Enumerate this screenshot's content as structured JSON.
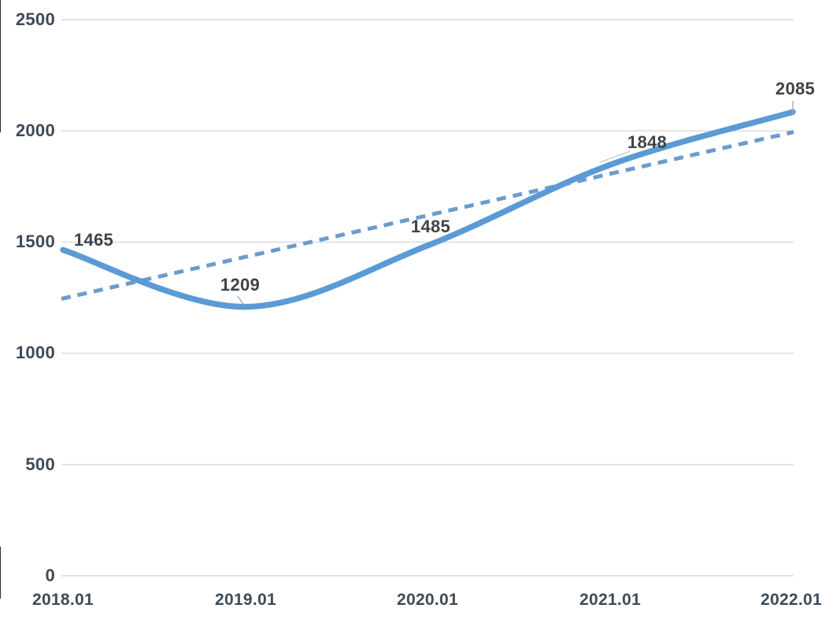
{
  "chart_data": {
    "type": "line",
    "title": "",
    "xlabel": "",
    "ylabel": "",
    "x": [
      "2018.01",
      "2019.01",
      "2020.01",
      "2021.01",
      "2022.01"
    ],
    "series": [
      {
        "name": "main-series",
        "line_style": "solid-smooth",
        "values": [
          1465,
          1209,
          1485,
          1848,
          2085
        ],
        "data_labels_shown": true
      }
    ],
    "trendline": {
      "name": "linear-trendline",
      "line_style": "dashed",
      "start_value": 1245,
      "end_value": 1995
    },
    "y_ticks": [
      0,
      500,
      1000,
      1500,
      2000,
      2500
    ],
    "ylim": [
      0,
      2500
    ],
    "grid": "horizontal-only",
    "legend": "none",
    "colors": {
      "line": "#5b9bd5",
      "trendline": "#6d9bcd",
      "gridline": "#d9d9d9",
      "axis_label": "#3e4a58",
      "data_label": "#3f4247",
      "leader_line": "#a8adb3",
      "background": "#ffffff"
    }
  }
}
